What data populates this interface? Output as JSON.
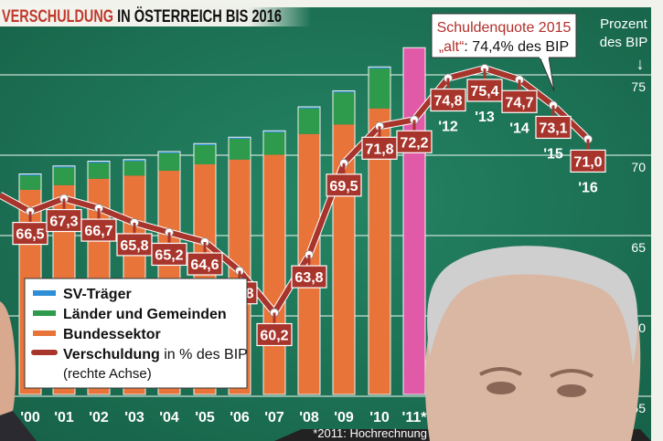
{
  "colors": {
    "background": "#1f7a5c",
    "sv": "#2f8fd6",
    "laender": "#2e9a4c",
    "bund": "#e8743a",
    "forecast": "#e05aa8",
    "line": "#a8352c",
    "title_accent": "#c0392b"
  },
  "chart_data": {
    "type": "bar+line",
    "title_accent": "VERSCHULDUNG",
    "title_rest": " IN ÖSTERREICH BIS 2016",
    "right_axis": {
      "label_line1": "Prozent",
      "label_line2": "des BIP",
      "arrow": "↓",
      "ticks": [
        75,
        70,
        65,
        60,
        55
      ],
      "range": [
        55,
        75
      ]
    },
    "bar_years": [
      "'00",
      "'01",
      "'02",
      "'03",
      "'04",
      "'05",
      "'06",
      "'07",
      "'08",
      "'09",
      "'10",
      "'11*"
    ],
    "bar_series": [
      {
        "name": "Bundessektor",
        "values": [
          128,
          131,
          135,
          137,
          140,
          144,
          147,
          150,
          163,
          169,
          179,
          null
        ]
      },
      {
        "name": "Länder und Gemeinden",
        "values": [
          9,
          11,
          10,
          9,
          11,
          12,
          13,
          14,
          16,
          20,
          25,
          null
        ]
      },
      {
        "name": "SV-Träger",
        "values": [
          1,
          1,
          1,
          1,
          1,
          1,
          1,
          1,
          1,
          1,
          1,
          null
        ]
      }
    ],
    "bar_totals_estimate": [
      138,
      143,
      146,
      147,
      152,
      157,
      161,
      165,
      180,
      190,
      205,
      217
    ],
    "forecast_bar_index": 11,
    "line": {
      "name": "Verschuldung in % des BIP",
      "years": [
        2000,
        2001,
        2002,
        2003,
        2004,
        2005,
        2006,
        2007,
        2008,
        2009,
        2010,
        2011,
        2012,
        2013,
        2014,
        2015,
        2016
      ],
      "values": [
        66.5,
        67.3,
        66.7,
        65.8,
        65.2,
        64.6,
        62.8,
        60.2,
        63.8,
        69.5,
        71.8,
        72.2,
        74.8,
        75.4,
        74.7,
        73.1,
        71.0
      ],
      "labels": [
        "66,5",
        "67,3",
        "66,7",
        "65,8",
        "65,2",
        "64,6",
        "62,8",
        "60,2",
        "63,8",
        "69,5",
        "71,8",
        "72,2",
        "74,8",
        "75,4",
        "74,7",
        "73,1",
        "71,0"
      ]
    },
    "future_years": [
      "'12",
      "'13",
      "'14",
      "'15",
      "'16"
    ],
    "legend": {
      "sv": "SV-Träger",
      "laender": "Länder und Gemeinden",
      "bund": "Bundessektor",
      "line_bold": "Verschuldung",
      "line_rest": " in % des BIP",
      "line_note": "(rechte Achse)",
      "placement": "bottom-left"
    },
    "callout": {
      "line1": "Schuldenquote 2015",
      "line2_bold": "„alt“",
      "line2_rest": ": 74,4% des BIP"
    },
    "footnote": "*2011: Hochrechnung"
  }
}
